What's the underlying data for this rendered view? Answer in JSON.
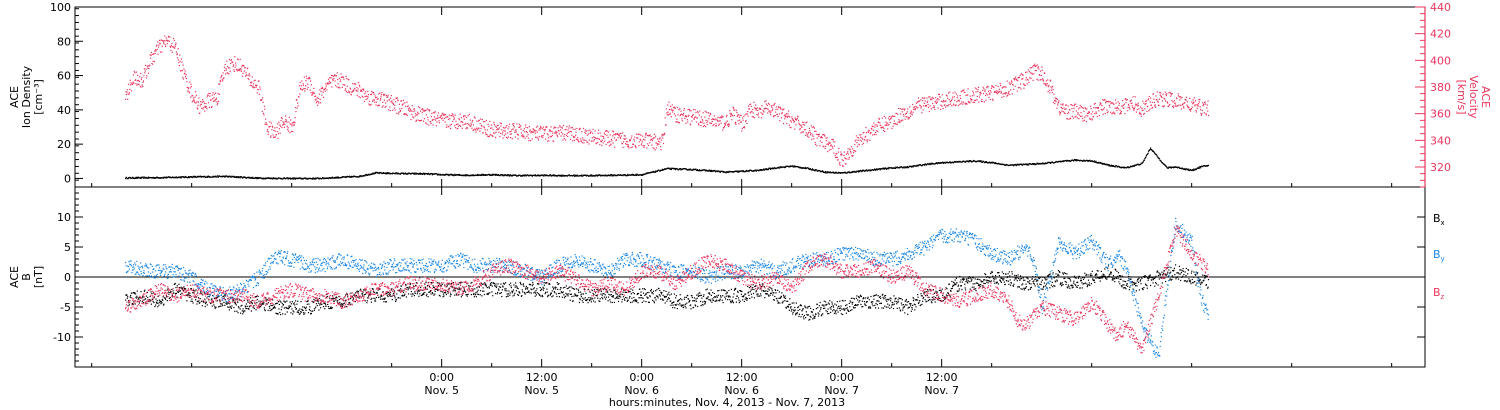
{
  "chart_data": [
    {
      "type": "scatter",
      "panel": "top",
      "ylabel_lines": [
        "ACE",
        "Ion Density",
        "[cm⁻³]"
      ],
      "ylim": [
        -5,
        100
      ],
      "yticks": [
        0,
        20,
        40,
        60,
        80,
        100
      ],
      "ylabel_right_lines": [
        "ACE",
        "Velocity",
        "[km/s]"
      ],
      "ylim_right": [
        305,
        440
      ],
      "yticks_right": [
        320,
        340,
        360,
        380,
        400,
        420,
        440
      ],
      "series": [
        {
          "axis": "left",
          "color": "#000000",
          "x_hours": [
            -38,
            -34,
            -30,
            -26,
            -24,
            -22,
            -20,
            -18,
            -15,
            -12,
            -10,
            -8,
            -5,
            -2,
            0,
            3,
            6,
            9,
            12,
            15,
            18,
            21,
            24,
            27,
            30,
            33,
            34,
            35,
            36,
            38,
            40,
            42,
            44,
            46,
            48,
            50,
            52,
            54,
            56,
            58,
            60,
            62,
            64,
            66,
            68,
            70,
            72,
            74,
            76,
            78,
            80,
            82,
            84,
            85,
            86,
            87,
            88,
            90,
            91,
            92
          ],
          "values": [
            0.6,
            0.8,
            1.2,
            1.5,
            1.0,
            0.5,
            0.4,
            0.3,
            0.3,
            1.0,
            1.5,
            3.5,
            3.2,
            3.0,
            2.5,
            2.2,
            2.5,
            2.0,
            2.1,
            2.0,
            2.0,
            2.2,
            2.5,
            6.0,
            5.5,
            4.5,
            4.0,
            4.2,
            4.5,
            5.0,
            6.5,
            7.5,
            6.0,
            4.0,
            3.5,
            4.5,
            5.5,
            6.5,
            7.0,
            8.5,
            9.5,
            10.0,
            10.5,
            9.5,
            8.0,
            8.5,
            9.0,
            10.0,
            11.0,
            10.5,
            8.0,
            6.5,
            9.0,
            18.0,
            12.0,
            6.5,
            7.0,
            5.0,
            7.0,
            8.0
          ]
        },
        {
          "axis": "right",
          "color": "#e8365d",
          "x_hours": [
            -38,
            -37,
            -36,
            -35,
            -34,
            -33,
            -32,
            -31,
            -30,
            -29,
            -28,
            -27,
            -26,
            -25,
            -24,
            -23,
            -22,
            -21,
            -20,
            -19,
            -18,
            -17,
            -16,
            -15,
            -14,
            -13,
            -12,
            -11,
            -10,
            -9,
            -8,
            -6,
            -3,
            0,
            3,
            6,
            9,
            12,
            15,
            18,
            21,
            24,
            26,
            26.5,
            27,
            28,
            30,
            32,
            33,
            34,
            35,
            36,
            37,
            38,
            39,
            40,
            42,
            44,
            45,
            46,
            47,
            48,
            49,
            50,
            52,
            54,
            55,
            56,
            57,
            58,
            59,
            60,
            62,
            64,
            66,
            68,
            70,
            71,
            72,
            73,
            74,
            75,
            76,
            77,
            78,
            79,
            80,
            82,
            83,
            84,
            86,
            88,
            90,
            91,
            92
          ],
          "values": [
            372,
            388,
            385,
            400,
            410,
            415,
            410,
            390,
            375,
            365,
            370,
            372,
            395,
            398,
            395,
            385,
            380,
            350,
            345,
            355,
            350,
            380,
            385,
            370,
            380,
            385,
            385,
            380,
            378,
            373,
            372,
            368,
            360,
            355,
            355,
            348,
            347,
            345,
            346,
            343,
            341,
            340,
            339,
            339,
            365,
            360,
            358,
            356,
            354,
            354,
            360,
            352,
            365,
            360,
            365,
            362,
            355,
            348,
            342,
            338,
            335,
            325,
            333,
            340,
            350,
            355,
            360,
            362,
            366,
            368,
            368,
            370,
            372,
            374,
            376,
            380,
            386,
            392,
            390,
            380,
            365,
            362,
            362,
            360,
            361,
            365,
            366,
            366,
            368,
            364,
            372,
            370,
            367,
            365,
            365
          ]
        }
      ]
    },
    {
      "type": "scatter",
      "panel": "bottom",
      "ylabel_lines": [
        "ACE",
        "B",
        "[nT]"
      ],
      "ylim": [
        -15,
        15
      ],
      "yticks": [
        -10,
        -5,
        0,
        5,
        10
      ],
      "zero_line": 0,
      "legend": [
        {
          "label": "B",
          "sub": "x",
          "color": "#000000"
        },
        {
          "label": "B",
          "sub": "y",
          "color": "#1e88e5"
        },
        {
          "label": "B",
          "sub": "z",
          "color": "#e8365d"
        }
      ],
      "series": [
        {
          "name": "Bx",
          "color": "#000000",
          "x_hours": [
            -38,
            -36,
            -34,
            -32,
            -30,
            -28,
            -26,
            -24,
            -22,
            -20,
            -18,
            -16,
            -14,
            -12,
            -10,
            -8,
            -6,
            -4,
            -2,
            0,
            2,
            4,
            6,
            8,
            10,
            12,
            14,
            16,
            18,
            20,
            22,
            24,
            26,
            28,
            30,
            32,
            34,
            36,
            38,
            40,
            42,
            44,
            46,
            48,
            50,
            52,
            54,
            56,
            58,
            60,
            62,
            64,
            66,
            68,
            70,
            72,
            74,
            76,
            78,
            80,
            82,
            84,
            86,
            88,
            90,
            92
          ],
          "values": [
            -4,
            -3,
            -4,
            -2,
            -3,
            -4,
            -4,
            -5,
            -4,
            -5,
            -5,
            -5,
            -4,
            -4,
            -3,
            -3,
            -3,
            -2,
            -2,
            -2,
            -2,
            -2,
            -2,
            -2,
            -2,
            -2,
            -2,
            -3,
            -3,
            -3,
            -3,
            -3,
            -3,
            -4,
            -4,
            -3,
            -3,
            -3,
            -2,
            -3,
            -5,
            -6,
            -5,
            -5,
            -4,
            -4,
            -4,
            -5,
            -3,
            -3,
            -1,
            -1,
            0,
            0,
            -1,
            -1,
            0,
            -1,
            0,
            1,
            -1,
            -1,
            0,
            1,
            0,
            -1
          ]
        },
        {
          "name": "By",
          "color": "#1e88e5",
          "x_hours": [
            -38,
            -36,
            -34,
            -32,
            -30,
            -28,
            -26,
            -24,
            -22,
            -20,
            -18,
            -16,
            -14,
            -12,
            -10,
            -8,
            -6,
            -4,
            -2,
            0,
            2,
            4,
            6,
            8,
            10,
            12,
            14,
            16,
            18,
            20,
            22,
            24,
            26,
            28,
            30,
            32,
            34,
            36,
            38,
            40,
            42,
            44,
            46,
            48,
            50,
            52,
            54,
            56,
            58,
            60,
            62,
            64,
            66,
            68,
            70,
            71,
            72,
            73,
            74,
            76,
            78,
            80,
            81,
            82,
            84,
            86,
            88,
            90,
            91,
            92
          ],
          "values": [
            2,
            1.5,
            1,
            1,
            0,
            -2,
            -3,
            -2,
            0,
            3.5,
            3,
            2,
            2,
            3,
            2,
            1,
            2,
            2,
            2,
            2,
            3,
            2,
            2,
            2,
            1,
            0,
            2,
            3,
            2,
            1,
            3,
            3,
            2,
            1,
            1,
            0,
            1,
            1,
            2,
            1,
            2,
            3,
            3,
            4,
            4,
            3,
            3,
            4,
            5,
            7,
            7,
            6,
            4,
            3,
            5,
            3,
            -5,
            0,
            6,
            4,
            6,
            2,
            4,
            2,
            -8,
            -13,
            9,
            6,
            -3,
            -7
          ]
        },
        {
          "name": "Bz",
          "color": "#e8365d",
          "x_hours": [
            -38,
            -36,
            -34,
            -32,
            -30,
            -28,
            -26,
            -24,
            -22,
            -20,
            -18,
            -16,
            -14,
            -12,
            -10,
            -8,
            -6,
            -4,
            -2,
            0,
            2,
            4,
            6,
            8,
            10,
            12,
            14,
            16,
            18,
            20,
            22,
            24,
            26,
            28,
            30,
            32,
            34,
            36,
            38,
            40,
            42,
            44,
            46,
            48,
            50,
            52,
            54,
            56,
            58,
            60,
            62,
            64,
            66,
            68,
            69,
            70,
            72,
            74,
            76,
            78,
            80,
            81,
            82,
            84,
            86,
            88,
            90,
            92
          ],
          "values": [
            -5,
            -4,
            -2,
            -3,
            -2,
            -3,
            -3,
            -3,
            -4,
            -3,
            -2,
            -3,
            -3,
            -4,
            -3,
            -2,
            -2,
            -1,
            -1,
            -1,
            -2,
            -1,
            1,
            2,
            1,
            0,
            1,
            0,
            -2,
            -1,
            -2,
            1,
            1,
            -1,
            1,
            3,
            2,
            0,
            -1,
            0,
            -2,
            2,
            3,
            1,
            1,
            2,
            0,
            1,
            -2,
            -3,
            -4,
            -3,
            -2,
            -4,
            -7,
            -8,
            -5,
            -6,
            -7,
            -4,
            -8,
            -10,
            -8,
            -12,
            -3,
            8,
            4,
            1
          ]
        }
      ]
    }
  ],
  "xaxis": {
    "range_hours": [
      -44,
      118
    ],
    "ticks": [
      {
        "h": 0,
        "label": "0:00",
        "sub": "Nov. 5"
      },
      {
        "h": 12,
        "label": "12:00",
        "sub": "Nov. 5"
      },
      {
        "h": 24,
        "label": "0:00",
        "sub": "Nov. 6"
      },
      {
        "h": 36,
        "label": "12:00",
        "sub": "Nov. 6"
      },
      {
        "h": 48,
        "label": "0:00",
        "sub": "Nov. 7"
      },
      {
        "h": 60,
        "label": "12:00",
        "sub": "Nov. 7"
      }
    ],
    "title": "hours:minutes, Nov.  4, 2013 - Nov.  7, 2013"
  }
}
